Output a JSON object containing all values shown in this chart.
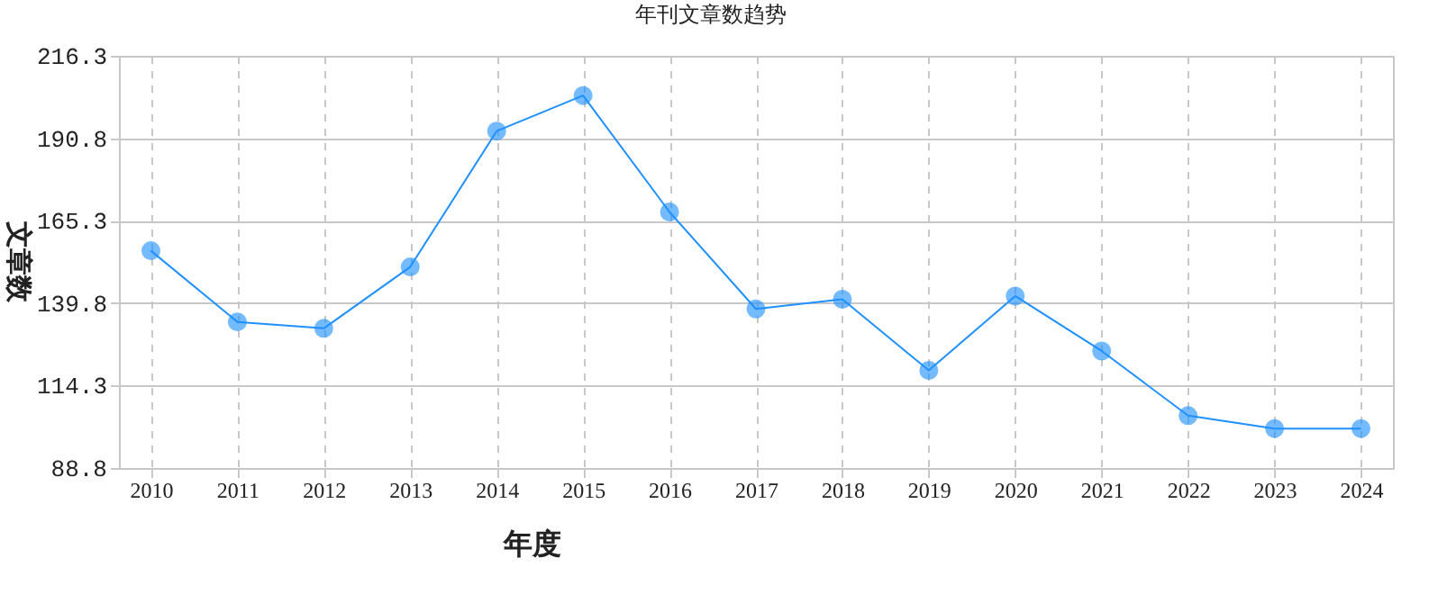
{
  "chart_data": {
    "type": "line",
    "title": "年刊文章数趋势",
    "xlabel": "年度",
    "ylabel": "文章数",
    "categories": [
      "2010",
      "2011",
      "2012",
      "2013",
      "2014",
      "2015",
      "2016",
      "2017",
      "2018",
      "2019",
      "2020",
      "2021",
      "2022",
      "2023",
      "2024"
    ],
    "series": [
      {
        "color": "#1e90ff",
        "values": [
          156,
          134,
          132,
          151,
          193,
          204,
          168,
          138,
          141,
          119,
          142,
          125,
          105,
          101,
          101
        ]
      }
    ],
    "ylim": [
      88.8,
      216.3
    ],
    "yticks": [
      88.8,
      114.3,
      139.8,
      165.3,
      190.8,
      216.3
    ],
    "grid": true,
    "marker": "circle",
    "line_style": "solid"
  }
}
